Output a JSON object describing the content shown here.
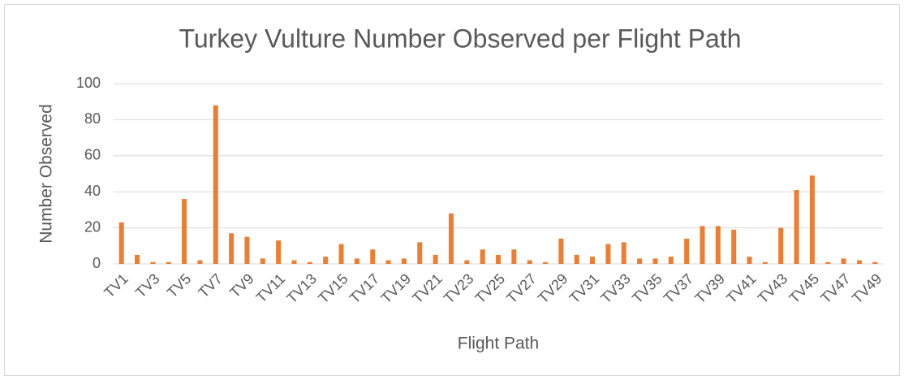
{
  "chart_data": {
    "type": "bar",
    "title": "Turkey Vulture Number Observed per Flight Path",
    "x_label": "Flight Path",
    "y_label": "Number Observed",
    "categories": [
      "TV1",
      null,
      "TV3",
      null,
      "TV5",
      null,
      "TV7",
      null,
      "TV9",
      null,
      "TV11",
      null,
      "TV13",
      null,
      "TV15",
      null,
      "TV17",
      null,
      "TV19",
      null,
      "TV21",
      null,
      "TV23",
      null,
      "TV25",
      null,
      "TV27",
      null,
      "TV29",
      null,
      "TV31",
      null,
      "TV33",
      null,
      "TV35",
      null,
      "TV37",
      null,
      "TV39",
      null,
      "TV41",
      null,
      "TV43",
      null,
      "TV45",
      null,
      "TV47",
      null,
      "TV49"
    ],
    "values": [
      23,
      5,
      1,
      1,
      36,
      2,
      88,
      17,
      15,
      3,
      13,
      2,
      1,
      4,
      11,
      3,
      8,
      2,
      3,
      12,
      5,
      28,
      2,
      8,
      5,
      8,
      2,
      1,
      14,
      5,
      4,
      11,
      12,
      3,
      3,
      4,
      14,
      21,
      21,
      19,
      4,
      1,
      20,
      41,
      49,
      1,
      3,
      2,
      1
    ],
    "color": "#ed7d31",
    "ylim": [
      0,
      100
    ],
    "yticks": [
      0,
      20,
      40,
      60,
      80,
      100
    ],
    "grid": true
  }
}
